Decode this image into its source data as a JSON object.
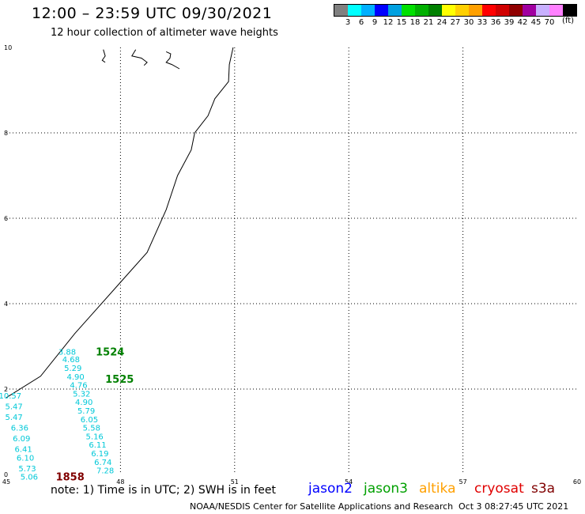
{
  "header": {
    "title": "12:00 – 23:59 UTC 09/30/2021",
    "subtitle": "12 hour collection of altimeter wave heights"
  },
  "legend": {
    "colors": [
      "#808080",
      "#00ffff",
      "#00b0ff",
      "#0000ff",
      "#00a0e0",
      "#00e000",
      "#00b000",
      "#008000",
      "#ffff00",
      "#ffd000",
      "#ffa000",
      "#ff0000",
      "#d00000",
      "#900000",
      "#a000a0",
      "#c8b0ff",
      "#ff80ff",
      "#000000"
    ],
    "labels": [
      "3",
      "6",
      "9",
      "12",
      "15",
      "18",
      "21",
      "24",
      "27",
      "30",
      "33",
      "36",
      "39",
      "42",
      "45",
      "70"
    ],
    "unit": "(ft)"
  },
  "map": {
    "x_ticks": [
      "45",
      "48",
      "51",
      "54",
      "57",
      "60"
    ],
    "y_ticks": [
      "0",
      "2",
      "4",
      "6",
      "8",
      "10"
    ],
    "lon_range": [
      45,
      60
    ],
    "lat_range": [
      0,
      10
    ],
    "coastline": [
      [
        50.96,
        10
      ],
      [
        50.86,
        9.6
      ],
      [
        50.84,
        9.2
      ],
      [
        50.48,
        8.8
      ],
      [
        50.3,
        8.4
      ],
      [
        49.95,
        8.0
      ],
      [
        49.86,
        7.6
      ],
      [
        49.5,
        7.0
      ],
      [
        49.2,
        6.2
      ],
      [
        48.7,
        5.2
      ],
      [
        48.0,
        4.5
      ],
      [
        47.3,
        3.8
      ],
      [
        46.8,
        3.3
      ],
      [
        45.9,
        2.3
      ],
      [
        45.0,
        1.8
      ]
    ],
    "islands": [
      [
        [
          47.55,
          9.95
        ],
        [
          47.6,
          9.8
        ],
        [
          47.52,
          9.7
        ],
        [
          47.6,
          9.65
        ]
      ],
      [
        [
          48.4,
          9.95
        ],
        [
          48.3,
          9.8
        ],
        [
          48.55,
          9.75
        ],
        [
          48.7,
          9.65
        ],
        [
          48.62,
          9.58
        ]
      ],
      [
        [
          49.2,
          9.9
        ],
        [
          49.32,
          9.85
        ],
        [
          49.3,
          9.75
        ],
        [
          49.2,
          9.65
        ],
        [
          49.35,
          9.6
        ],
        [
          49.55,
          9.5
        ]
      ]
    ],
    "tracks": [
      {
        "name": "track-1",
        "color": "#00c8d8",
        "points": [
          {
            "lon": 46.6,
            "lat": 2.88,
            "label": "3.88"
          },
          {
            "lon": 46.7,
            "lat": 2.7,
            "label": "4.68"
          },
          {
            "lon": 46.75,
            "lat": 2.5,
            "label": "5.29"
          },
          {
            "lon": 46.82,
            "lat": 2.3,
            "label": "4.90"
          },
          {
            "lon": 46.9,
            "lat": 2.1,
            "label": "4.76"
          },
          {
            "lon": 46.98,
            "lat": 1.9,
            "label": "5.32"
          },
          {
            "lon": 47.04,
            "lat": 1.7,
            "label": "4.90"
          },
          {
            "lon": 47.1,
            "lat": 1.5,
            "label": "5.79"
          },
          {
            "lon": 47.18,
            "lat": 1.3,
            "label": "6.05"
          },
          {
            "lon": 47.24,
            "lat": 1.1,
            "label": "5.58"
          },
          {
            "lon": 47.32,
            "lat": 0.9,
            "label": "5.16"
          },
          {
            "lon": 47.4,
            "lat": 0.7,
            "label": "6.11"
          },
          {
            "lon": 47.46,
            "lat": 0.5,
            "label": "6.19"
          },
          {
            "lon": 47.54,
            "lat": 0.3,
            "label": "6.74"
          },
          {
            "lon": 47.6,
            "lat": 0.1,
            "label": "7.28"
          }
        ]
      },
      {
        "name": "track-2",
        "color": "#00c8d8",
        "points": [
          {
            "lon": 45.1,
            "lat": 1.85,
            "label": "10.57"
          },
          {
            "lon": 45.2,
            "lat": 1.6,
            "label": "5.47"
          },
          {
            "lon": 45.2,
            "lat": 1.35,
            "label": "5.47"
          },
          {
            "lon": 45.35,
            "lat": 1.1,
            "label": "6.36"
          },
          {
            "lon": 45.4,
            "lat": 0.85,
            "label": "6.09"
          },
          {
            "lon": 45.45,
            "lat": 0.6,
            "label": "6.41"
          },
          {
            "lon": 45.5,
            "lat": 0.4,
            "label": "6.10"
          },
          {
            "lon": 45.55,
            "lat": 0.15,
            "label": "5.73"
          },
          {
            "lon": 45.6,
            "lat": -0.05,
            "label": "5.06"
          }
        ]
      }
    ],
    "time_labels": [
      {
        "text": "1524",
        "color": "#008000",
        "lon": 47.35,
        "lat": 2.88
      },
      {
        "text": "1525",
        "color": "#008000",
        "lon": 47.6,
        "lat": 2.24
      },
      {
        "text": "1858",
        "color": "#800000",
        "lon": 46.3,
        "lat": -0.05
      }
    ]
  },
  "footer": {
    "note": "note:  1) Time is in UTC;  2) SWH is in feet",
    "satellites": [
      {
        "name": "jason2",
        "color": "#0000ff"
      },
      {
        "name": "jason3",
        "color": "#00a000"
      },
      {
        "name": "altika",
        "color": "#ffa000"
      },
      {
        "name": "cryosat",
        "color": "#e00000"
      },
      {
        "name": "s3a",
        "color": "#800000"
      }
    ],
    "organization": "NOAA/NESDIS Center for Satellite Applications and Research",
    "timestamp": "Oct  3 08:27:45 UTC 2021"
  }
}
